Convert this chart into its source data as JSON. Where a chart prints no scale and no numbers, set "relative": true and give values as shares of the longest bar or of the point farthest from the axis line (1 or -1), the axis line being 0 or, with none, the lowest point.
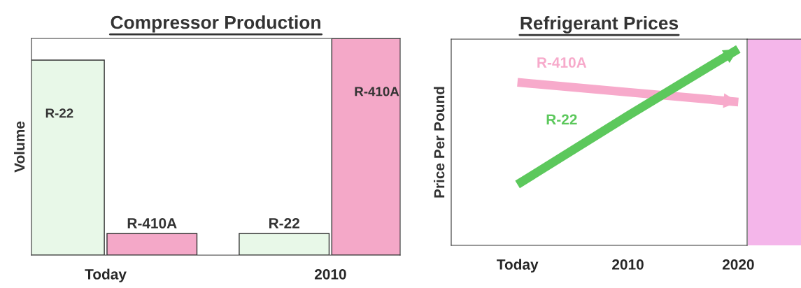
{
  "chart_data": [
    {
      "type": "bar",
      "title": "Compressor Production",
      "ylabel": "Volume",
      "relative": true,
      "categories": [
        "Today",
        "2010"
      ],
      "series": [
        {
          "name": "R-22",
          "color": "#e8f8e8",
          "values": [
            0.9,
            0.1
          ]
        },
        {
          "name": "R-410A",
          "color": "#f4a8c8",
          "values": [
            0.1,
            1.0
          ]
        }
      ],
      "legend": false,
      "grid": false
    },
    {
      "type": "line",
      "title": "Refrigerant Prices",
      "ylabel": "Price Per Pound",
      "relative": true,
      "categories": [
        "Today",
        "2010",
        "2020"
      ],
      "series": [
        {
          "name": "R-410A",
          "color": "#f7aacb",
          "values": [
            0.83,
            0.78,
            0.73
          ]
        },
        {
          "name": "R-22",
          "color": "#5cc85c",
          "values": [
            0.31,
            0.66,
            1.0
          ]
        }
      ],
      "legend": false,
      "grid": false
    }
  ]
}
